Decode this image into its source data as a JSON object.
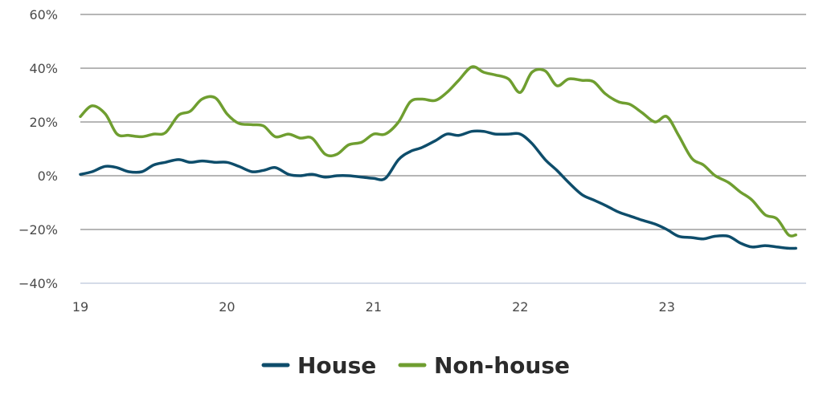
{
  "chart_data": {
    "type": "line",
    "title": "",
    "xlabel": "",
    "ylabel": "",
    "xlim": [
      19.0,
      23.95
    ],
    "ylim": [
      -40,
      60
    ],
    "grid": true,
    "legend_position": "bottom-center",
    "y_ticks": [
      60,
      40,
      20,
      0,
      -20,
      -40
    ],
    "y_tick_labels": [
      "60%",
      "40%",
      "20%",
      "0%",
      "−20%",
      "−40%"
    ],
    "x_ticks": [
      19,
      20,
      21,
      22,
      23
    ],
    "x_tick_labels": [
      "19",
      "20",
      "21",
      "22",
      "23"
    ],
    "colors": {
      "house": "#0e4d6b",
      "non_house": "#6f9e30",
      "grid": "#8a8a8a",
      "axis": "#c7d0e0"
    },
    "series": [
      {
        "name": "House",
        "x": [
          19.0,
          19.08,
          19.17,
          19.25,
          19.33,
          19.42,
          19.5,
          19.58,
          19.67,
          19.75,
          19.83,
          19.92,
          20.0,
          20.08,
          20.17,
          20.25,
          20.33,
          20.42,
          20.5,
          20.58,
          20.67,
          20.75,
          20.83,
          20.92,
          21.0,
          21.08,
          21.17,
          21.25,
          21.33,
          21.42,
          21.5,
          21.58,
          21.67,
          21.75,
          21.83,
          21.92,
          22.0,
          22.08,
          22.17,
          22.25,
          22.33,
          22.42,
          22.5,
          22.58,
          22.67,
          22.75,
          22.83,
          22.92,
          23.0,
          23.08,
          23.17,
          23.25,
          23.33,
          23.42,
          23.5,
          23.58,
          23.67,
          23.75,
          23.83,
          23.88
        ],
        "values": [
          0.5,
          1.5,
          3.5,
          3.0,
          1.5,
          1.5,
          4.0,
          5.0,
          6.0,
          5.0,
          5.5,
          5.0,
          5.0,
          3.5,
          1.5,
          2.0,
          3.0,
          0.5,
          0.0,
          0.5,
          -0.5,
          0.0,
          0.0,
          -0.5,
          -1.0,
          -1.0,
          6.0,
          9.0,
          10.5,
          13.0,
          15.5,
          15.0,
          16.5,
          16.5,
          15.5,
          15.5,
          15.5,
          12.0,
          6.0,
          2.0,
          -2.5,
          -7.0,
          -9.0,
          -11.0,
          -13.5,
          -15.0,
          -16.5,
          -18.0,
          -20.0,
          -22.5,
          -23.0,
          -23.5,
          -22.5,
          -22.5,
          -25.0,
          -26.5,
          -26.0,
          -26.5,
          -27.0,
          -27.0
        ]
      },
      {
        "name": "Non-house",
        "x": [
          19.0,
          19.08,
          19.17,
          19.25,
          19.33,
          19.42,
          19.5,
          19.58,
          19.67,
          19.75,
          19.83,
          19.92,
          20.0,
          20.08,
          20.17,
          20.25,
          20.33,
          20.42,
          20.5,
          20.58,
          20.67,
          20.75,
          20.83,
          20.92,
          21.0,
          21.08,
          21.17,
          21.25,
          21.33,
          21.42,
          21.5,
          21.58,
          21.67,
          21.75,
          21.83,
          21.92,
          22.0,
          22.08,
          22.17,
          22.25,
          22.33,
          22.42,
          22.5,
          22.58,
          22.67,
          22.75,
          22.83,
          22.92,
          23.0,
          23.08,
          23.17,
          23.25,
          23.33,
          23.42,
          23.5,
          23.58,
          23.67,
          23.75,
          23.83,
          23.88
        ],
        "values": [
          22.0,
          26.0,
          23.0,
          15.5,
          15.0,
          14.5,
          15.5,
          16.0,
          22.5,
          24.0,
          28.5,
          29.0,
          23.0,
          19.5,
          19.0,
          18.5,
          14.5,
          15.5,
          14.0,
          14.0,
          8.0,
          8.0,
          11.5,
          12.5,
          15.5,
          15.5,
          20.0,
          27.5,
          28.5,
          28.0,
          31.0,
          35.5,
          40.5,
          38.5,
          37.5,
          36.0,
          31.0,
          38.5,
          39.0,
          33.5,
          36.0,
          35.5,
          35.0,
          30.5,
          27.5,
          26.5,
          23.5,
          20.0,
          22.0,
          15.0,
          6.5,
          4.0,
          0.0,
          -2.5,
          -6.0,
          -9.0,
          -14.5,
          -16.0,
          -22.0,
          -22.0
        ]
      }
    ]
  }
}
